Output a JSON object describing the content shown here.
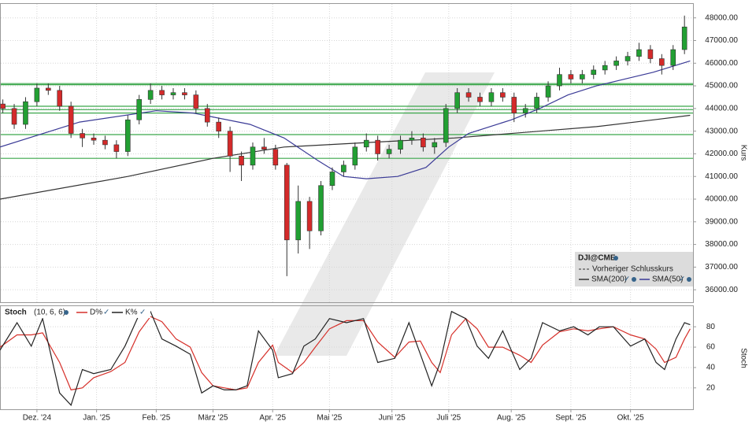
{
  "chart_data": [
    {
      "type": "candlestick",
      "axis_label": "Kurs",
      "xlim": [
        0,
        244
      ],
      "ylim": [
        35450,
        48650
      ],
      "yticks": [
        {
          "value": 36000,
          "label": "36000.00"
        },
        {
          "value": 37000,
          "label": "37000.00"
        },
        {
          "value": 38000,
          "label": "38000.00"
        },
        {
          "value": 39000,
          "label": "39000.00"
        },
        {
          "value": 40000,
          "label": "40000.00"
        },
        {
          "value": 41000,
          "label": "41000.00"
        },
        {
          "value": 42000,
          "label": "42000.00"
        },
        {
          "value": 43000,
          "label": "43000.00"
        },
        {
          "value": 44000,
          "label": "44000.00"
        },
        {
          "value": 45000,
          "label": "45000.00"
        },
        {
          "value": 46000,
          "label": "46000.00"
        },
        {
          "value": 47000,
          "label": "47000.00"
        },
        {
          "value": 48000,
          "label": "48000.00"
        }
      ],
      "grid": true,
      "up_color": "#22a033",
      "down_color": "#d42a2a",
      "x": [
        1,
        5,
        9,
        13,
        17,
        21,
        25,
        29,
        33,
        37,
        41,
        45,
        49,
        53,
        57,
        61,
        65,
        69,
        73,
        77,
        81,
        85,
        89,
        93,
        97,
        101,
        105,
        109,
        113,
        117,
        121,
        125,
        129,
        133,
        137,
        141,
        145,
        149,
        153,
        157,
        161,
        165,
        169,
        173,
        177,
        181,
        185,
        189,
        193,
        197,
        201,
        205,
        209,
        213,
        217,
        221,
        225,
        229,
        233,
        237,
        241
      ],
      "open": [
        44200,
        44000,
        43300,
        44300,
        44900,
        44800,
        44100,
        42900,
        42700,
        42600,
        42400,
        42100,
        43500,
        44400,
        44800,
        44600,
        44700,
        44600,
        44000,
        43400,
        43000,
        41900,
        41500,
        42300,
        42200,
        41500,
        38200,
        39900,
        38600,
        40600,
        41200,
        41500,
        42300,
        42600,
        42000,
        42200,
        42600,
        42700,
        42300,
        42500,
        44000,
        44700,
        44500,
        44300,
        44700,
        44500,
        43800,
        44000,
        44500,
        45000,
        45500,
        45300,
        45500,
        45700,
        45900,
        46100,
        46300,
        46600,
        46200,
        45900,
        46600
      ],
      "high": [
        44400,
        44200,
        44500,
        45100,
        45100,
        45000,
        44300,
        43100,
        42900,
        42800,
        42600,
        43700,
        44600,
        45100,
        45000,
        44900,
        44900,
        44800,
        44200,
        43600,
        43200,
        42100,
        42500,
        42700,
        42400,
        41600,
        40600,
        40100,
        40800,
        41400,
        41700,
        42500,
        42900,
        42800,
        42400,
        42800,
        43000,
        42900,
        42700,
        44200,
        44900,
        44900,
        44700,
        44900,
        44900,
        44700,
        44200,
        44700,
        45200,
        45800,
        45700,
        45700,
        45900,
        46100,
        46300,
        46500,
        46900,
        46800,
        46400,
        46800,
        48100
      ],
      "low": [
        43800,
        43100,
        43100,
        44100,
        44600,
        43900,
        42700,
        42300,
        42400,
        42200,
        41800,
        41900,
        43300,
        44200,
        44400,
        44400,
        44400,
        43800,
        43200,
        42700,
        41200,
        40800,
        41300,
        42000,
        41300,
        36600,
        37600,
        37800,
        38400,
        40400,
        41000,
        41300,
        42100,
        41700,
        41800,
        42000,
        42400,
        42100,
        42000,
        42300,
        43800,
        44300,
        44100,
        44100,
        44300,
        43400,
        43600,
        43800,
        44300,
        44800,
        45100,
        45100,
        45300,
        45500,
        45700,
        45900,
        46100,
        46000,
        45500,
        45700,
        46400
      ],
      "close": [
        44000,
        43300,
        44300,
        44900,
        44800,
        44100,
        42900,
        42700,
        42600,
        42400,
        42100,
        43500,
        44400,
        44800,
        44600,
        44700,
        44600,
        44000,
        43400,
        43000,
        41900,
        41500,
        42300,
        42200,
        41500,
        38200,
        39900,
        38600,
        40600,
        41200,
        41500,
        42300,
        42600,
        42000,
        42200,
        42600,
        42700,
        42300,
        42500,
        44000,
        44700,
        44500,
        44300,
        44700,
        44500,
        43800,
        44000,
        44500,
        45000,
        45500,
        45300,
        45500,
        45700,
        45900,
        46100,
        46300,
        46600,
        46200,
        45900,
        46600,
        47600
      ],
      "hlines": [
        45100,
        45050,
        44100,
        43950,
        43800,
        42850,
        41800
      ],
      "hline_color": "#3aa64a",
      "lines": [
        {
          "name": "SMA(200)",
          "color": "#333333",
          "x": [
            0,
            45,
            75,
            100,
            130,
            160,
            190,
            210,
            230,
            243
          ],
          "values": [
            40000,
            41000,
            41800,
            42300,
            42500,
            42700,
            43000,
            43200,
            43500,
            43700
          ]
        },
        {
          "name": "SMA(50)",
          "color": "#3a3a96",
          "x": [
            0,
            28,
            55,
            68,
            88,
            100,
            112,
            121,
            129,
            140,
            150,
            158,
            165,
            180,
            190,
            200,
            210,
            220,
            230,
            243
          ],
          "values": [
            42300,
            43400,
            43900,
            43800,
            43300,
            42700,
            41700,
            41000,
            40900,
            41000,
            41400,
            42300,
            42900,
            43500,
            44000,
            44600,
            45000,
            45300,
            45600,
            46100
          ]
        }
      ],
      "legend": {
        "title": "DJI@CME",
        "previous_close": "Vorheriger Schlusskurs"
      }
    },
    {
      "type": "line",
      "title": "Stoch",
      "params": "(10, 6, 6)",
      "axis_label": "Stoch",
      "xlim": [
        0,
        244
      ],
      "ylim": [
        -1,
        101
      ],
      "yticks": [
        20,
        40,
        60,
        80
      ],
      "grid": true,
      "xticks": [
        {
          "value": 13,
          "label": "Dez. '24"
        },
        {
          "value": 34,
          "label": "Jan. '25"
        },
        {
          "value": 55,
          "label": "Feb. '25"
        },
        {
          "value": 75,
          "label": "März '25"
        },
        {
          "value": 96,
          "label": "Apr. '25"
        },
        {
          "value": 116,
          "label": "Mai '25"
        },
        {
          "value": 138,
          "label": "Juni '25"
        },
        {
          "value": 158,
          "label": "Juli '25"
        },
        {
          "value": 180,
          "label": "Aug. '25"
        },
        {
          "value": 201,
          "label": "Sept. '25"
        },
        {
          "value": 222,
          "label": "Okt. '25"
        }
      ],
      "x": [
        0,
        6,
        11,
        15,
        21,
        25,
        29,
        33,
        39,
        44,
        49,
        53,
        57,
        62,
        67,
        71,
        75,
        79,
        83,
        87,
        91,
        96,
        98,
        103,
        107,
        111,
        116,
        122,
        128,
        133,
        139,
        144,
        148,
        152,
        155,
        159,
        164,
        168,
        172,
        177,
        183,
        187,
        191,
        197,
        202,
        207,
        211,
        216,
        222,
        227,
        231,
        234,
        238,
        241,
        243
      ],
      "series": [
        {
          "name": "D%",
          "color": "#d6302a",
          "values": [
            60,
            72,
            72,
            74,
            45,
            18,
            20,
            30,
            36,
            45,
            75,
            90,
            85,
            68,
            60,
            35,
            22,
            20,
            18,
            20,
            45,
            62,
            45,
            35,
            45,
            60,
            78,
            86,
            86,
            65,
            50,
            65,
            66,
            45,
            35,
            72,
            88,
            78,
            60,
            60,
            52,
            45,
            62,
            75,
            78,
            76,
            78,
            80,
            72,
            68,
            58,
            45,
            50,
            68,
            78
          ]
        },
        {
          "name": "K%",
          "color": "#222222",
          "values": [
            57,
            84,
            61,
            88,
            15,
            3,
            38,
            34,
            38,
            61,
            92,
            95,
            68,
            61,
            53,
            15,
            22,
            18,
            18,
            22,
            76,
            57,
            30,
            34,
            61,
            68,
            88,
            84,
            88,
            45,
            49,
            84,
            53,
            22,
            45,
            95,
            88,
            61,
            49,
            76,
            38,
            49,
            84,
            76,
            80,
            72,
            80,
            80,
            61,
            68,
            45,
            38,
            68,
            84,
            82
          ]
        }
      ]
    }
  ]
}
